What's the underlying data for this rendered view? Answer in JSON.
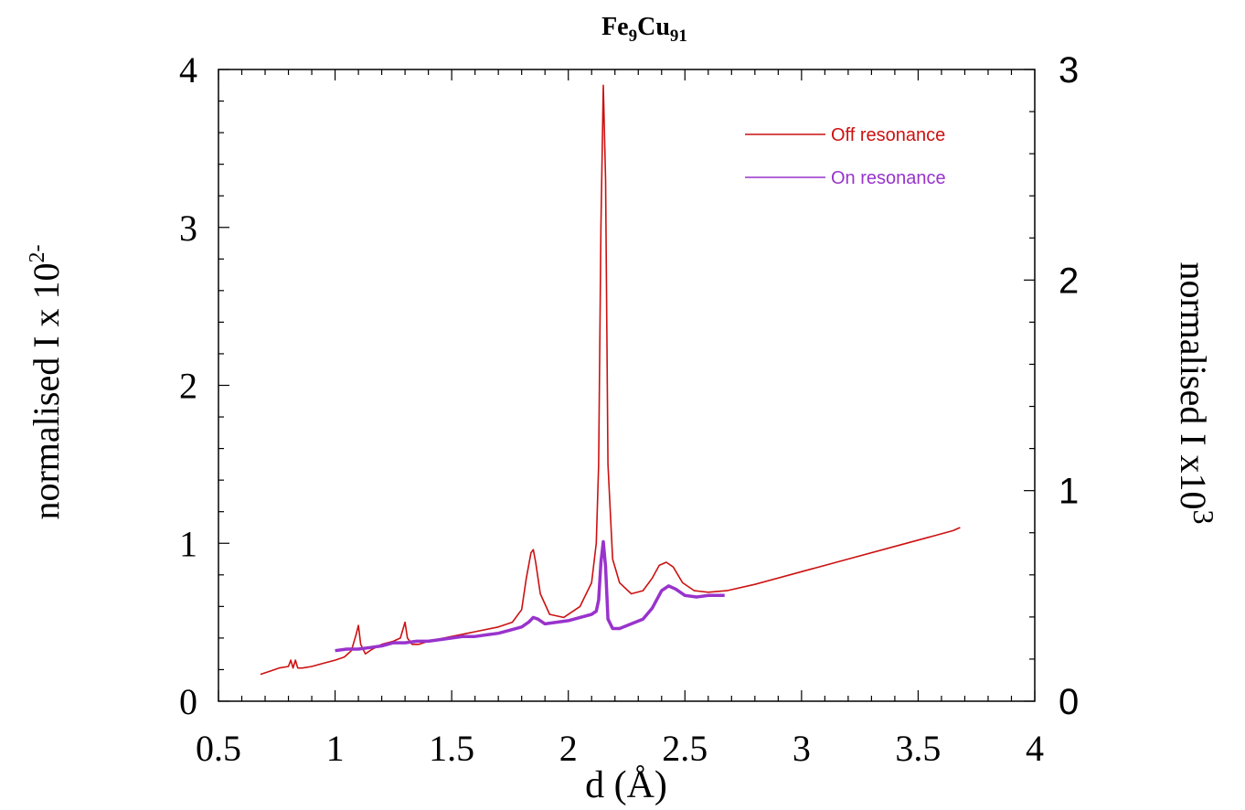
{
  "chart_data": {
    "type": "line",
    "title": {
      "main": "Fe",
      "sub1": "9",
      "main2": "Cu",
      "sub2": "91"
    },
    "xlabel": "d (Å)",
    "ylabel_left": {
      "text": "normalised I x 10",
      "sup": "2",
      "suffix": "-"
    },
    "ylabel_right": {
      "text": "normalised I x10",
      "sup": "3"
    },
    "xlim": [
      0.5,
      4
    ],
    "ylim_left": [
      0,
      4
    ],
    "ylim_right": [
      0,
      3
    ],
    "x_ticks": [
      "0.5",
      "1",
      "1.5",
      "2",
      "2.5",
      "3",
      "3.5",
      "4"
    ],
    "y_left_ticks": [
      "0",
      "1",
      "2",
      "3",
      "4"
    ],
    "y_right_ticks": [
      "0",
      "1",
      "2",
      "3"
    ],
    "legend_position": "top-right",
    "grid": false,
    "series": [
      {
        "name": "Off resonance",
        "axis": "left",
        "color": "#cc1111",
        "x": [
          0.68,
          0.72,
          0.76,
          0.8,
          0.81,
          0.82,
          0.83,
          0.84,
          0.86,
          0.9,
          0.95,
          1.0,
          1.04,
          1.07,
          1.09,
          1.1,
          1.11,
          1.13,
          1.16,
          1.2,
          1.25,
          1.28,
          1.3,
          1.31,
          1.33,
          1.36,
          1.4,
          1.5,
          1.6,
          1.7,
          1.76,
          1.8,
          1.82,
          1.84,
          1.85,
          1.86,
          1.88,
          1.92,
          1.98,
          2.05,
          2.1,
          2.12,
          2.13,
          2.14,
          2.15,
          2.16,
          2.17,
          2.19,
          2.22,
          2.27,
          2.32,
          2.36,
          2.39,
          2.42,
          2.45,
          2.49,
          2.54,
          2.6,
          2.68,
          2.8,
          3.0,
          3.2,
          3.4,
          3.6,
          3.65,
          3.68
        ],
        "y": [
          0.17,
          0.19,
          0.21,
          0.22,
          0.26,
          0.21,
          0.26,
          0.21,
          0.21,
          0.22,
          0.24,
          0.26,
          0.28,
          0.32,
          0.42,
          0.48,
          0.36,
          0.3,
          0.33,
          0.36,
          0.38,
          0.4,
          0.5,
          0.4,
          0.36,
          0.36,
          0.38,
          0.41,
          0.44,
          0.47,
          0.5,
          0.58,
          0.78,
          0.94,
          0.96,
          0.88,
          0.68,
          0.55,
          0.53,
          0.6,
          0.75,
          1.0,
          1.5,
          3.0,
          3.9,
          3.3,
          1.5,
          0.9,
          0.75,
          0.68,
          0.7,
          0.78,
          0.86,
          0.88,
          0.85,
          0.75,
          0.7,
          0.69,
          0.7,
          0.74,
          0.82,
          0.9,
          0.98,
          1.06,
          1.08,
          1.1
        ]
      },
      {
        "name": "On resonance",
        "axis": "left",
        "color": "#9933cc",
        "x": [
          1.0,
          1.05,
          1.1,
          1.15,
          1.2,
          1.25,
          1.3,
          1.35,
          1.4,
          1.45,
          1.5,
          1.55,
          1.6,
          1.65,
          1.7,
          1.75,
          1.8,
          1.83,
          1.85,
          1.87,
          1.9,
          1.95,
          2.0,
          2.05,
          2.1,
          2.12,
          2.13,
          2.14,
          2.15,
          2.16,
          2.17,
          2.19,
          2.22,
          2.27,
          2.32,
          2.36,
          2.4,
          2.43,
          2.46,
          2.5,
          2.55,
          2.6,
          2.67
        ],
        "y": [
          0.32,
          0.33,
          0.33,
          0.34,
          0.35,
          0.37,
          0.37,
          0.38,
          0.38,
          0.39,
          0.4,
          0.41,
          0.41,
          0.42,
          0.43,
          0.45,
          0.47,
          0.5,
          0.53,
          0.52,
          0.49,
          0.5,
          0.51,
          0.53,
          0.55,
          0.57,
          0.64,
          0.88,
          1.01,
          0.85,
          0.52,
          0.46,
          0.46,
          0.49,
          0.52,
          0.59,
          0.7,
          0.73,
          0.71,
          0.67,
          0.66,
          0.67,
          0.67
        ]
      }
    ]
  }
}
